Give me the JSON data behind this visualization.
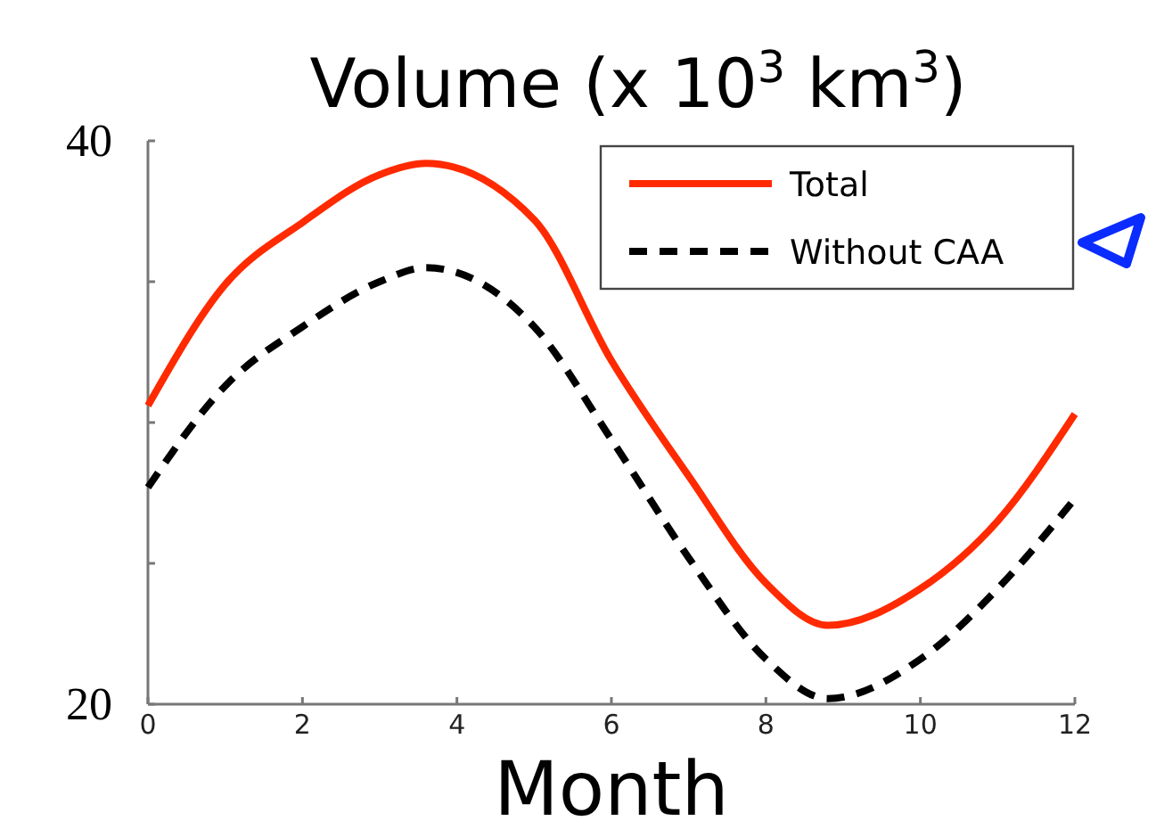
{
  "chart_data": {
    "type": "line",
    "title": "Volume (x 10$^{3}$ km$^{3}$)",
    "xlabel": "Month",
    "xlim": [
      0,
      12
    ],
    "xticks": [
      0,
      2,
      4,
      6,
      8,
      10,
      12
    ],
    "ylim": [
      20,
      40
    ],
    "yticks": [
      20,
      {
        "value": 25,
        "label": null
      },
      {
        "value": 30,
        "label": null
      },
      {
        "value": 35,
        "label": null
      },
      40
    ],
    "grid": false,
    "legend": "top right",
    "series": [
      {
        "name": "Total",
        "color": "#ff2a00",
        "line_style": "solid",
        "x": [
          0,
          1,
          2,
          3,
          3.6,
          5,
          6,
          7,
          8,
          8.8,
          10,
          11,
          12
        ],
        "values": [
          30.6,
          34.9,
          37.1,
          38.8,
          39.2,
          37.2,
          32.2,
          28.1,
          24.3,
          22.8,
          24.1,
          26.5,
          30.3
        ]
      },
      {
        "name": "Without CAA",
        "color": "#000000",
        "line_style": "dashed",
        "x": [
          0,
          1,
          2,
          3,
          3.6,
          5,
          6,
          7,
          8,
          8.8,
          10,
          11,
          12
        ],
        "values": [
          27.7,
          31.3,
          33.4,
          35.0,
          35.5,
          33.4,
          29.4,
          25.2,
          21.6,
          20.2,
          21.6,
          24.1,
          27.3
        ]
      }
    ]
  }
}
